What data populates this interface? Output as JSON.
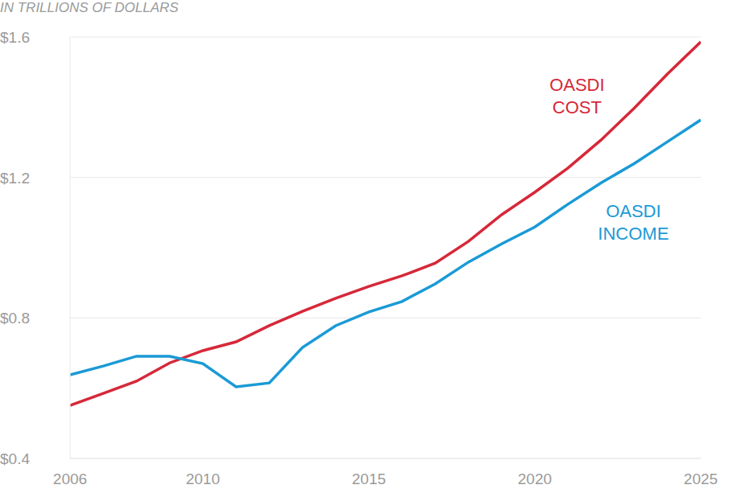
{
  "chart_data": {
    "type": "line",
    "subtitle": "IN TRILLIONS OF DOLLARS",
    "x": [
      2006,
      2007,
      2008,
      2009,
      2010,
      2011,
      2012,
      2013,
      2014,
      2015,
      2016,
      2017,
      2018,
      2019,
      2020,
      2021,
      2022,
      2023,
      2024,
      2025
    ],
    "series": [
      {
        "name": "OASDI COST",
        "color": "#d62839",
        "values": [
          0.551,
          0.585,
          0.62,
          0.672,
          0.707,
          0.732,
          0.778,
          0.819,
          0.856,
          0.89,
          0.92,
          0.956,
          1.018,
          1.094,
          1.158,
          1.227,
          1.307,
          1.398,
          1.495,
          1.586
        ]
      },
      {
        "name": "OASDI INCOME",
        "color": "#1a9ad6",
        "values": [
          0.638,
          0.663,
          0.691,
          0.691,
          0.67,
          0.604,
          0.615,
          0.716,
          0.778,
          0.817,
          0.847,
          0.897,
          0.959,
          1.011,
          1.059,
          1.124,
          1.185,
          1.24,
          1.302,
          1.364
        ]
      }
    ],
    "xlim": [
      2006,
      2025
    ],
    "xticks": [
      2006,
      2010,
      2015,
      2020,
      2025
    ],
    "ylim": [
      0.4,
      1.6
    ],
    "yticks": [
      {
        "value": 0.4,
        "label": "$0.4"
      },
      {
        "value": 0.8,
        "label": "$0.8"
      },
      {
        "value": 1.2,
        "label": "$1.2"
      },
      {
        "value": 1.6,
        "label": "$1.6"
      }
    ],
    "grid": true
  }
}
